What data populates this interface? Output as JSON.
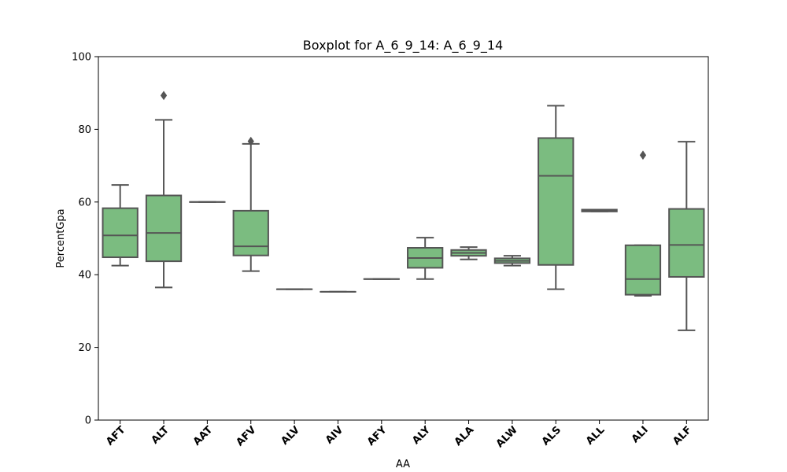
{
  "chart_data": {
    "type": "boxplot",
    "title": "Boxplot for A_6_9_14: A_6_9_14",
    "xlabel": "AA",
    "ylabel": "PercentGpa",
    "ylim": [
      0,
      100
    ],
    "yticks": [
      0,
      20,
      40,
      60,
      80,
      100
    ],
    "grid": false,
    "box_color": "#7bbc80",
    "edge_color": "#555555",
    "categories": [
      "AFT",
      "ALT",
      "AAT",
      "AFV",
      "ALV",
      "AIV",
      "AFY",
      "ALY",
      "ALA",
      "ALW",
      "ALS",
      "ALL",
      "ALI",
      "ALF"
    ],
    "boxes": [
      {
        "label": "AFT",
        "whisker_low": 42.5,
        "q1": 44.8,
        "median": 50.8,
        "q3": 58.3,
        "whisker_high": 64.7,
        "outliers": []
      },
      {
        "label": "ALT",
        "whisker_low": 36.5,
        "q1": 43.7,
        "median": 51.5,
        "q3": 61.8,
        "whisker_high": 82.6,
        "outliers": [
          89.3
        ]
      },
      {
        "label": "AAT",
        "whisker_low": 60.0,
        "q1": 60.0,
        "median": 60.0,
        "q3": 60.0,
        "whisker_high": 60.0,
        "outliers": []
      },
      {
        "label": "AFV",
        "whisker_low": 41.0,
        "q1": 45.3,
        "median": 47.8,
        "q3": 57.6,
        "whisker_high": 76.0,
        "outliers": [
          76.7
        ]
      },
      {
        "label": "ALV",
        "whisker_low": 36.0,
        "q1": 36.0,
        "median": 36.0,
        "q3": 36.0,
        "whisker_high": 36.0,
        "outliers": []
      },
      {
        "label": "AIV",
        "whisker_low": 35.3,
        "q1": 35.3,
        "median": 35.3,
        "q3": 35.3,
        "whisker_high": 35.3,
        "outliers": []
      },
      {
        "label": "AFY",
        "whisker_low": 38.8,
        "q1": 38.8,
        "median": 38.8,
        "q3": 38.8,
        "whisker_high": 38.8,
        "outliers": []
      },
      {
        "label": "ALY",
        "whisker_low": 38.8,
        "q1": 41.9,
        "median": 44.6,
        "q3": 47.4,
        "whisker_high": 50.2,
        "outliers": []
      },
      {
        "label": "ALA",
        "whisker_low": 44.2,
        "q1": 45.2,
        "median": 46.0,
        "q3": 46.8,
        "whisker_high": 47.6,
        "outliers": []
      },
      {
        "label": "ALW",
        "whisker_low": 42.5,
        "q1": 43.2,
        "median": 43.8,
        "q3": 44.5,
        "whisker_high": 45.2,
        "outliers": []
      },
      {
        "label": "ALS",
        "whisker_low": 36.0,
        "q1": 42.7,
        "median": 67.2,
        "q3": 77.6,
        "whisker_high": 86.5,
        "outliers": []
      },
      {
        "label": "ALL",
        "whisker_low": 57.4,
        "q1": 57.4,
        "median": 57.7,
        "q3": 57.9,
        "whisker_high": 57.9,
        "outliers": []
      },
      {
        "label": "ALI",
        "whisker_low": 34.2,
        "q1": 34.5,
        "median": 38.8,
        "q3": 48.1,
        "whisker_high": 48.1,
        "outliers": [
          72.9
        ]
      },
      {
        "label": "ALF",
        "whisker_low": 24.7,
        "q1": 39.4,
        "median": 48.2,
        "q3": 58.1,
        "whisker_high": 76.6,
        "outliers": []
      }
    ]
  }
}
